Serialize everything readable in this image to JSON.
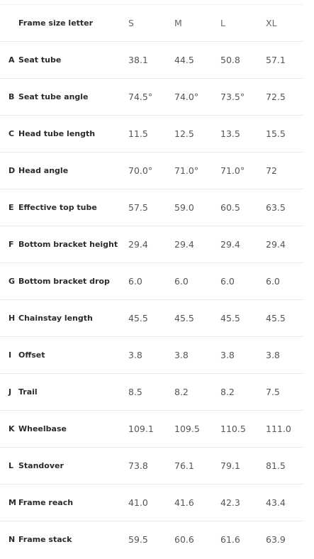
{
  "header": {
    "label": "Frame size letter",
    "sizes": [
      "S",
      "M",
      "L",
      "XL"
    ]
  },
  "rows": [
    {
      "letter": "A",
      "label": "Seat tube",
      "values": [
        "38.1",
        "44.5",
        "50.8",
        "57.1"
      ]
    },
    {
      "letter": "B",
      "label": "Seat tube angle",
      "values": [
        "74.5°",
        "74.0°",
        "73.5°",
        "72.5"
      ]
    },
    {
      "letter": "C",
      "label": "Head tube length",
      "values": [
        "11.5",
        "12.5",
        "13.5",
        "15.5"
      ]
    },
    {
      "letter": "D",
      "label": "Head angle",
      "values": [
        "70.0°",
        "71.0°",
        "71.0°",
        "72"
      ]
    },
    {
      "letter": "E",
      "label": "Effective top tube",
      "values": [
        "57.5",
        "59.0",
        "60.5",
        "63.5"
      ]
    },
    {
      "letter": "F",
      "label": "Bottom bracket height",
      "values": [
        "29.4",
        "29.4",
        "29.4",
        "29.4"
      ]
    },
    {
      "letter": "G",
      "label": "Bottom bracket drop",
      "values": [
        "6.0",
        "6.0",
        "6.0",
        "6.0"
      ]
    },
    {
      "letter": "H",
      "label": "Chainstay length",
      "values": [
        "45.5",
        "45.5",
        "45.5",
        "45.5"
      ]
    },
    {
      "letter": "I",
      "label": "Offset",
      "values": [
        "3.8",
        "3.8",
        "3.8",
        "3.8"
      ]
    },
    {
      "letter": "J",
      "label": "Trail",
      "values": [
        "8.5",
        "8.2",
        "8.2",
        "7.5"
      ]
    },
    {
      "letter": "K",
      "label": "Wheelbase",
      "values": [
        "109.1",
        "109.5",
        "110.5",
        "111.0"
      ]
    },
    {
      "letter": "L",
      "label": "Standover",
      "values": [
        "73.8",
        "76.1",
        "79.1",
        "81.5"
      ]
    },
    {
      "letter": "M",
      "label": "Frame reach",
      "values": [
        "41.0",
        "41.6",
        "42.3",
        "43.4"
      ]
    },
    {
      "letter": "N",
      "label": "Frame stack",
      "values": [
        "59.5",
        "60.6",
        "61.6",
        "63.9"
      ]
    }
  ]
}
